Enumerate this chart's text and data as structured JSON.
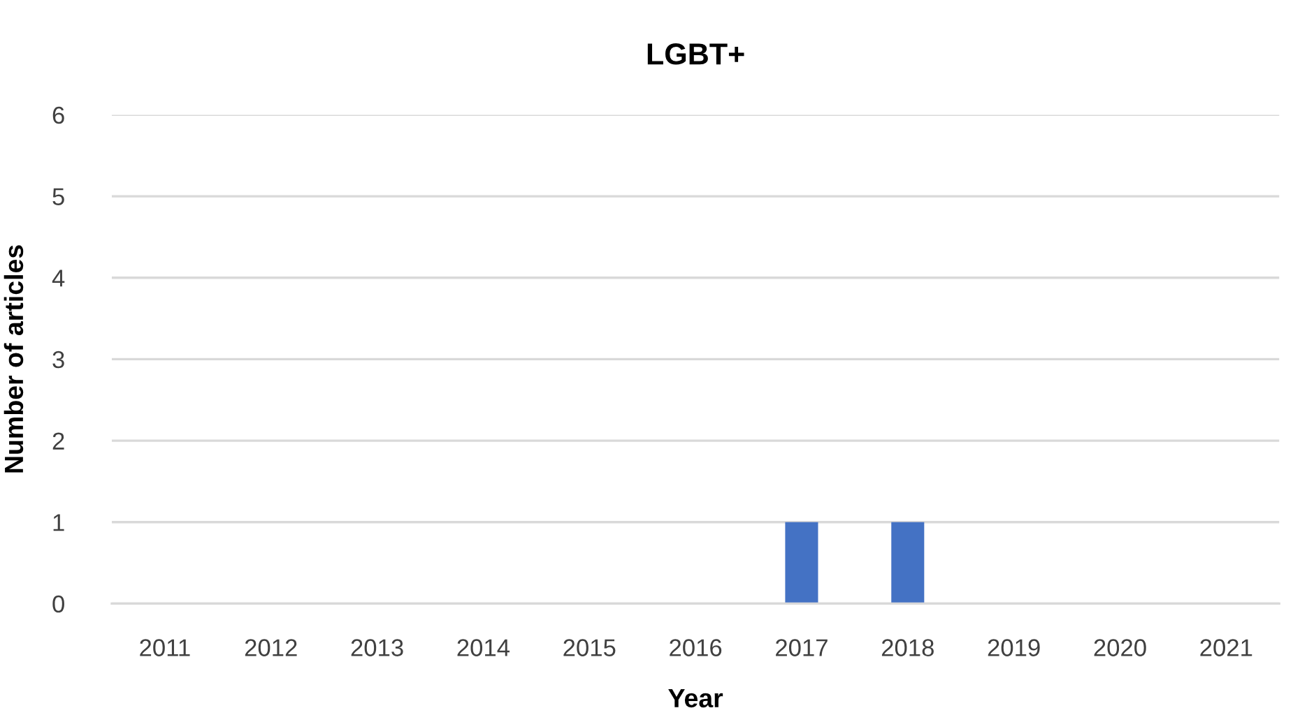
{
  "chart_data": {
    "type": "bar",
    "title": "LGBT+",
    "xlabel": "Year",
    "ylabel": "Number of articles",
    "categories": [
      "2011",
      "2012",
      "2013",
      "2014",
      "2015",
      "2016",
      "2017",
      "2018",
      "2019",
      "2020",
      "2021"
    ],
    "values": [
      0,
      0,
      0,
      0,
      0,
      0,
      1,
      1,
      0,
      0,
      0
    ],
    "color": "#4472c4",
    "ylim": [
      0,
      6
    ],
    "yticks": [
      0,
      1,
      2,
      3,
      4,
      5,
      6
    ],
    "grid": "y"
  }
}
